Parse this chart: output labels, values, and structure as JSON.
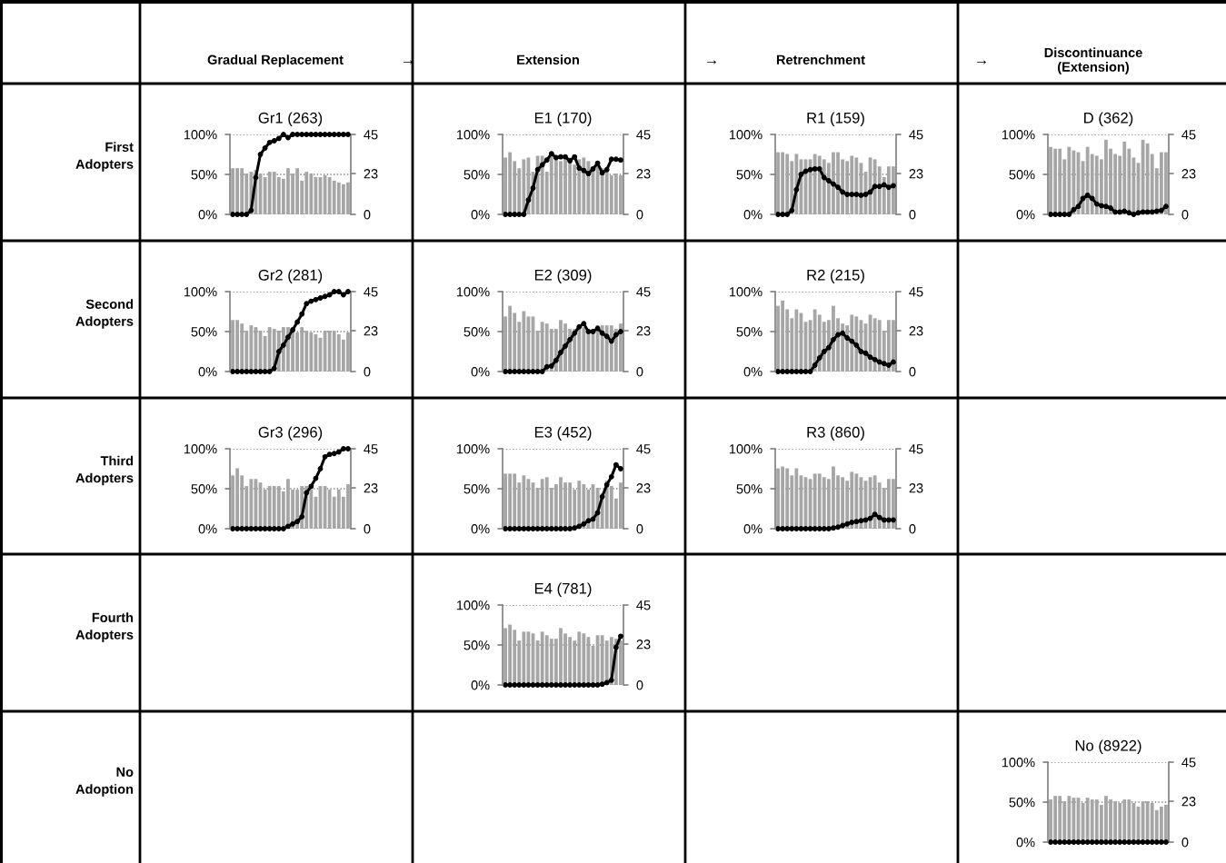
{
  "chart_data": [
    {
      "type": "other",
      "categories": [
        "Gradual Replacement",
        "Extension",
        "Retrenchment",
        "Discontinuance\n(Extension)"
      ],
      "y_categories": [
        "First\nAdopters",
        "Second\nAdopters",
        "Third\nAdopters",
        "Fourth\nAdopters",
        "No\nAdoption"
      ],
      "annotations": [
        "→",
        "→",
        "→"
      ]
    },
    {
      "type": "bar",
      "title": "Gr1 (263)",
      "categories": [
        null,
        null,
        null,
        null,
        null,
        null,
        null,
        null,
        null,
        null,
        null,
        null,
        null,
        null,
        null,
        null,
        null,
        null,
        null,
        null,
        null,
        null,
        null,
        null,
        null,
        null
      ],
      "ylim": [
        0,
        100
      ],
      "yticks": [
        {
          "value": 0,
          "label": "0%"
        },
        {
          "value": 50,
          "label": "50%"
        },
        {
          "value": 100,
          "label": "100%"
        }
      ],
      "y2lim": [
        0,
        45
      ],
      "y2ticks": [
        0,
        23,
        45
      ],
      "grid": "y",
      "marker": "circle",
      "series": [
        {
          "type": "bar",
          "axis": "y2",
          "color": "#a6a6a6",
          "values": [
            26,
            26,
            26,
            23,
            24,
            25,
            23,
            21,
            24,
            24,
            21,
            20,
            26,
            23,
            26,
            19,
            24,
            23,
            21,
            21,
            22,
            21,
            19,
            18,
            17,
            18
          ]
        },
        {
          "type": "line",
          "color": "#000000",
          "values": [
            0,
            0,
            0,
            0,
            5,
            46,
            75,
            83,
            90,
            92,
            95,
            100,
            96,
            100,
            100,
            100,
            100,
            100,
            100,
            100,
            100,
            100,
            100,
            100,
            100,
            100
          ]
        }
      ]
    },
    {
      "type": "bar",
      "title": "E1 (170)",
      "categories": [
        null,
        null,
        null,
        null,
        null,
        null,
        null,
        null,
        null,
        null,
        null,
        null,
        null,
        null,
        null,
        null,
        null,
        null,
        null,
        null,
        null,
        null,
        null,
        null,
        null,
        null
      ],
      "ylim": [
        0,
        100
      ],
      "yticks": [
        {
          "value": 0,
          "label": "0%"
        },
        {
          "value": 50,
          "label": "50%"
        },
        {
          "value": 100,
          "label": "100%"
        }
      ],
      "y2lim": [
        0,
        45
      ],
      "y2ticks": [
        0,
        23,
        45
      ],
      "grid": "y",
      "marker": "circle",
      "series": [
        {
          "type": "bar",
          "axis": "y2",
          "color": "#a6a6a6",
          "values": [
            32,
            35,
            30,
            26,
            31,
            32,
            24,
            33,
            33,
            24,
            33,
            32,
            30,
            31,
            32,
            28,
            31,
            32,
            30,
            25,
            28,
            26,
            24,
            22,
            23,
            22
          ]
        },
        {
          "type": "line",
          "color": "#000000",
          "values": [
            0,
            0,
            0,
            0,
            0,
            18,
            33,
            56,
            62,
            68,
            76,
            71,
            72,
            72,
            67,
            72,
            58,
            55,
            51,
            57,
            64,
            52,
            56,
            69,
            69,
            68
          ]
        }
      ]
    },
    {
      "type": "bar",
      "title": "R1 (159)",
      "categories": [
        null,
        null,
        null,
        null,
        null,
        null,
        null,
        null,
        null,
        null,
        null,
        null,
        null,
        null,
        null,
        null,
        null,
        null,
        null,
        null,
        null,
        null,
        null,
        null,
        null,
        null
      ],
      "ylim": [
        0,
        100
      ],
      "yticks": [
        {
          "value": 0,
          "label": "0%"
        },
        {
          "value": 50,
          "label": "50%"
        },
        {
          "value": 100,
          "label": "100%"
        }
      ],
      "y2lim": [
        0,
        45
      ],
      "y2ticks": [
        0,
        23,
        45
      ],
      "grid": "y",
      "marker": "circle",
      "series": [
        {
          "type": "bar",
          "axis": "y2",
          "color": "#a6a6a6",
          "values": [
            35,
            35,
            34,
            30,
            34,
            31,
            31,
            31,
            34,
            33,
            31,
            29,
            35,
            35,
            31,
            30,
            33,
            32,
            29,
            24,
            32,
            31,
            27,
            21,
            27,
            27
          ]
        },
        {
          "type": "line",
          "color": "#000000",
          "values": [
            0,
            0,
            0,
            5,
            31,
            50,
            54,
            56,
            57,
            57,
            46,
            42,
            38,
            34,
            28,
            25,
            25,
            25,
            24,
            25,
            28,
            35,
            35,
            37,
            34,
            36
          ]
        }
      ]
    },
    {
      "type": "bar",
      "title": "D (362)",
      "categories": [
        null,
        null,
        null,
        null,
        null,
        null,
        null,
        null,
        null,
        null,
        null,
        null,
        null,
        null,
        null,
        null,
        null,
        null,
        null,
        null,
        null,
        null,
        null,
        null,
        null,
        null
      ],
      "ylim": [
        0,
        100
      ],
      "yticks": [
        {
          "value": 0,
          "label": "0%"
        },
        {
          "value": 50,
          "label": "50%"
        },
        {
          "value": 100,
          "label": "100%"
        }
      ],
      "y2lim": [
        0,
        45
      ],
      "y2ticks": [
        0,
        23,
        45
      ],
      "grid": "y",
      "marker": "circle",
      "series": [
        {
          "type": "bar",
          "axis": "y2",
          "color": "#a6a6a6",
          "values": [
            38,
            37,
            37,
            31,
            38,
            36,
            35,
            30,
            38,
            34,
            33,
            31,
            42,
            37,
            34,
            33,
            41,
            37,
            32,
            29,
            42,
            40,
            34,
            26,
            35,
            35
          ]
        },
        {
          "type": "line",
          "color": "#000000",
          "values": [
            0,
            0,
            0,
            0,
            0,
            6,
            10,
            20,
            24,
            20,
            13,
            11,
            10,
            8,
            3,
            3,
            4,
            2,
            0,
            2,
            3,
            3,
            3,
            4,
            5,
            10
          ]
        }
      ]
    },
    {
      "type": "bar",
      "title": "Gr2 (281)",
      "categories": [
        null,
        null,
        null,
        null,
        null,
        null,
        null,
        null,
        null,
        null,
        null,
        null,
        null,
        null,
        null,
        null,
        null,
        null,
        null,
        null,
        null,
        null,
        null,
        null,
        null,
        null
      ],
      "ylim": [
        0,
        100
      ],
      "yticks": [
        {
          "value": 0,
          "label": "0%"
        },
        {
          "value": 50,
          "label": "50%"
        },
        {
          "value": 100,
          "label": "100%"
        }
      ],
      "y2lim": [
        0,
        45
      ],
      "y2ticks": [
        0,
        23,
        45
      ],
      "grid": "y",
      "marker": "circle",
      "series": [
        {
          "type": "bar",
          "axis": "y2",
          "color": "#a6a6a6",
          "values": [
            29,
            29,
            27,
            23,
            26,
            25,
            23,
            20,
            25,
            24,
            23,
            25,
            25,
            25,
            22,
            25,
            23,
            22,
            21,
            19,
            23,
            23,
            23,
            21,
            18,
            22
          ]
        },
        {
          "type": "line",
          "color": "#000000",
          "values": [
            0,
            0,
            0,
            0,
            0,
            0,
            0,
            0,
            0,
            4,
            25,
            33,
            43,
            52,
            62,
            72,
            85,
            88,
            90,
            92,
            94,
            96,
            100,
            100,
            96,
            100
          ]
        }
      ]
    },
    {
      "type": "bar",
      "title": "E2 (309)",
      "categories": [
        null,
        null,
        null,
        null,
        null,
        null,
        null,
        null,
        null,
        null,
        null,
        null,
        null,
        null,
        null,
        null,
        null,
        null,
        null,
        null,
        null,
        null,
        null,
        null,
        null,
        null
      ],
      "ylim": [
        0,
        100
      ],
      "yticks": [
        {
          "value": 0,
          "label": "0%"
        },
        {
          "value": 50,
          "label": "50%"
        },
        {
          "value": 100,
          "label": "100%"
        }
      ],
      "y2lim": [
        0,
        45
      ],
      "y2ticks": [
        0,
        23,
        45
      ],
      "grid": "y",
      "marker": "circle",
      "series": [
        {
          "type": "bar",
          "axis": "y2",
          "color": "#a6a6a6",
          "values": [
            31,
            37,
            33,
            28,
            34,
            31,
            31,
            23,
            28,
            27,
            24,
            24,
            29,
            27,
            24,
            24,
            24,
            25,
            24,
            24,
            26,
            26,
            26,
            26,
            24,
            27
          ]
        },
        {
          "type": "line",
          "color": "#000000",
          "values": [
            0,
            0,
            0,
            0,
            0,
            0,
            0,
            0,
            0,
            6,
            7,
            14,
            24,
            32,
            40,
            48,
            56,
            60,
            50,
            50,
            54,
            48,
            44,
            38,
            46,
            50
          ]
        }
      ]
    },
    {
      "type": "bar",
      "title": "R2 (215)",
      "categories": [
        null,
        null,
        null,
        null,
        null,
        null,
        null,
        null,
        null,
        null,
        null,
        null,
        null,
        null,
        null,
        null,
        null,
        null,
        null,
        null,
        null,
        null,
        null,
        null,
        null,
        null
      ],
      "ylim": [
        0,
        100
      ],
      "yticks": [
        {
          "value": 0,
          "label": "0%"
        },
        {
          "value": 50,
          "label": "50%"
        },
        {
          "value": 100,
          "label": "100%"
        }
      ],
      "y2lim": [
        0,
        45
      ],
      "y2ticks": [
        0,
        23,
        45
      ],
      "grid": "y",
      "marker": "circle",
      "series": [
        {
          "type": "bar",
          "axis": "y2",
          "color": "#a6a6a6",
          "values": [
            37,
            40,
            35,
            30,
            35,
            33,
            28,
            29,
            35,
            32,
            28,
            29,
            37,
            30,
            27,
            26,
            32,
            31,
            29,
            27,
            32,
            30,
            29,
            23,
            29,
            29
          ]
        },
        {
          "type": "line",
          "color": "#000000",
          "values": [
            0,
            0,
            0,
            0,
            0,
            0,
            0,
            0,
            8,
            17,
            25,
            30,
            40,
            46,
            48,
            42,
            38,
            33,
            25,
            23,
            18,
            15,
            12,
            10,
            8,
            12
          ]
        }
      ]
    },
    {
      "type": "bar",
      "title": "Gr3 (296)",
      "categories": [
        null,
        null,
        null,
        null,
        null,
        null,
        null,
        null,
        null,
        null,
        null,
        null,
        null,
        null,
        null,
        null,
        null,
        null,
        null,
        null,
        null,
        null,
        null,
        null,
        null,
        null
      ],
      "ylim": [
        0,
        100
      ],
      "yticks": [
        {
          "value": 0,
          "label": "0%"
        },
        {
          "value": 50,
          "label": "50%"
        },
        {
          "value": 100,
          "label": "100%"
        }
      ],
      "y2lim": [
        0,
        45
      ],
      "y2ticks": [
        0,
        23,
        45
      ],
      "grid": "y",
      "marker": "circle",
      "series": [
        {
          "type": "bar",
          "axis": "y2",
          "color": "#a6a6a6",
          "values": [
            30,
            34,
            30,
            24,
            28,
            28,
            26,
            22,
            24,
            24,
            24,
            21,
            28,
            22,
            22,
            24,
            24,
            22,
            18,
            24,
            24,
            22,
            18,
            22,
            18,
            25
          ]
        },
        {
          "type": "line",
          "color": "#000000",
          "values": [
            0,
            0,
            0,
            0,
            0,
            0,
            0,
            0,
            0,
            0,
            0,
            0,
            3,
            6,
            9,
            15,
            45,
            53,
            63,
            75,
            90,
            93,
            94,
            96,
            100,
            100
          ]
        }
      ]
    },
    {
      "type": "bar",
      "title": "E3 (452)",
      "categories": [
        null,
        null,
        null,
        null,
        null,
        null,
        null,
        null,
        null,
        null,
        null,
        null,
        null,
        null,
        null,
        null,
        null,
        null,
        null,
        null,
        null,
        null,
        null,
        null,
        null,
        null
      ],
      "ylim": [
        0,
        100
      ],
      "yticks": [
        {
          "value": 0,
          "label": "0%"
        },
        {
          "value": 50,
          "label": "50%"
        },
        {
          "value": 100,
          "label": "100%"
        }
      ],
      "y2lim": [
        0,
        45
      ],
      "y2ticks": [
        0,
        23,
        45
      ],
      "grid": "y",
      "marker": "circle",
      "series": [
        {
          "type": "bar",
          "axis": "y2",
          "color": "#a6a6a6",
          "values": [
            31,
            31,
            31,
            26,
            30,
            28,
            26,
            23,
            28,
            29,
            23,
            25,
            29,
            26,
            26,
            22,
            27,
            25,
            22,
            25,
            23,
            20,
            27,
            24,
            17,
            26
          ]
        },
        {
          "type": "line",
          "color": "#000000",
          "values": [
            0,
            0,
            0,
            0,
            0,
            0,
            0,
            0,
            0,
            0,
            0,
            0,
            0,
            0,
            0,
            1,
            3,
            6,
            10,
            12,
            20,
            40,
            55,
            65,
            80,
            75
          ]
        }
      ]
    },
    {
      "type": "bar",
      "title": "R3 (860)",
      "categories": [
        null,
        null,
        null,
        null,
        null,
        null,
        null,
        null,
        null,
        null,
        null,
        null,
        null,
        null,
        null,
        null,
        null,
        null,
        null,
        null,
        null,
        null,
        null,
        null,
        null,
        null
      ],
      "ylim": [
        0,
        100
      ],
      "yticks": [
        {
          "value": 0,
          "label": "0%"
        },
        {
          "value": 50,
          "label": "50%"
        },
        {
          "value": 100,
          "label": "100%"
        }
      ],
      "y2lim": [
        0,
        45
      ],
      "y2ticks": [
        0,
        23,
        45
      ],
      "grid": "y",
      "marker": "circle",
      "series": [
        {
          "type": "bar",
          "axis": "y2",
          "color": "#a6a6a6",
          "values": [
            34,
            35,
            34,
            30,
            34,
            30,
            29,
            28,
            31,
            31,
            29,
            28,
            35,
            30,
            29,
            27,
            32,
            31,
            29,
            27,
            29,
            30,
            26,
            23,
            28,
            28
          ]
        },
        {
          "type": "line",
          "color": "#000000",
          "values": [
            0,
            0,
            0,
            0,
            0,
            0,
            0,
            0,
            0,
            0,
            0,
            0,
            1,
            2,
            4,
            6,
            8,
            9,
            10,
            11,
            13,
            18,
            14,
            11,
            11,
            11
          ]
        }
      ]
    },
    {
      "type": "bar",
      "title": "E4 (781)",
      "categories": [
        null,
        null,
        null,
        null,
        null,
        null,
        null,
        null,
        null,
        null,
        null,
        null,
        null,
        null,
        null,
        null,
        null,
        null,
        null,
        null,
        null,
        null,
        null,
        null,
        null,
        null
      ],
      "ylim": [
        0,
        100
      ],
      "yticks": [
        {
          "value": 0,
          "label": "0%"
        },
        {
          "value": 50,
          "label": "50%"
        },
        {
          "value": 100,
          "label": "100%"
        }
      ],
      "y2lim": [
        0,
        45
      ],
      "y2ticks": [
        0,
        23,
        45
      ],
      "grid": "y",
      "marker": "circle",
      "series": [
        {
          "type": "bar",
          "axis": "y2",
          "color": "#a6a6a6",
          "values": [
            32,
            34,
            31,
            25,
            30,
            30,
            29,
            25,
            30,
            28,
            26,
            26,
            32,
            29,
            27,
            25,
            30,
            29,
            27,
            22,
            28,
            28,
            25,
            27,
            26,
            25
          ]
        },
        {
          "type": "line",
          "color": "#000000",
          "values": [
            0,
            0,
            0,
            0,
            0,
            0,
            0,
            0,
            0,
            0,
            0,
            0,
            0,
            0,
            0,
            0,
            0,
            0,
            0,
            0,
            0,
            1,
            3,
            6,
            47,
            61
          ]
        }
      ]
    },
    {
      "type": "bar",
      "title": "No (8922)",
      "categories": [
        null,
        null,
        null,
        null,
        null,
        null,
        null,
        null,
        null,
        null,
        null,
        null,
        null,
        null,
        null,
        null,
        null,
        null,
        null,
        null,
        null,
        null,
        null,
        null,
        null,
        null
      ],
      "ylim": [
        0,
        100
      ],
      "yticks": [
        {
          "value": 0,
          "label": "0%"
        },
        {
          "value": 50,
          "label": "50%"
        },
        {
          "value": 100,
          "label": "100%"
        }
      ],
      "y2lim": [
        0,
        45
      ],
      "y2ticks": [
        0,
        23,
        45
      ],
      "grid": "y",
      "marker": "circle",
      "series": [
        {
          "type": "bar",
          "axis": "y2",
          "color": "#a6a6a6",
          "values": [
            24,
            26,
            26,
            23,
            26,
            25,
            25,
            22,
            25,
            24,
            24,
            21,
            26,
            24,
            23,
            22,
            24,
            24,
            22,
            20,
            23,
            23,
            22,
            18,
            20,
            21
          ]
        },
        {
          "type": "line",
          "color": "#000000",
          "values": [
            0,
            0,
            0,
            0,
            0,
            0,
            0,
            0,
            0,
            0,
            0,
            0,
            0,
            0,
            0,
            0,
            0,
            0,
            0,
            0,
            0,
            0,
            0,
            0,
            0,
            0
          ]
        }
      ]
    }
  ]
}
